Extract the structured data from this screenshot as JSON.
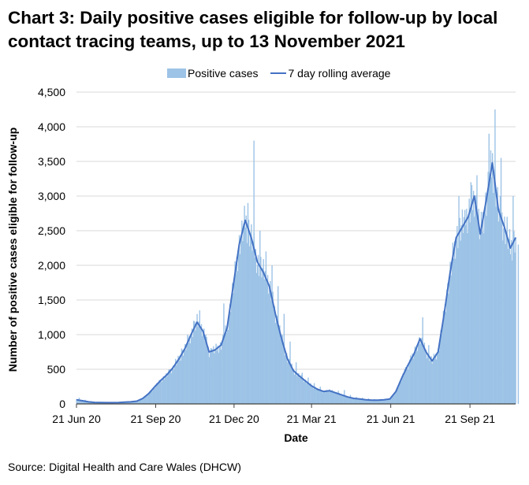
{
  "source": "Source: Digital Health and Care Wales (DHCW)",
  "chart_data": {
    "type": "bar",
    "title": "Chart 3: Daily positive cases eligible for follow-up by local contact tracing teams, up to 13 November 2021",
    "xlabel": "Date",
    "ylabel": "Number of positive cases eligible for follow-up",
    "ylim": [
      0,
      4500
    ],
    "yticks": [
      "0",
      "500",
      "1,000",
      "1,500",
      "2,000",
      "2,500",
      "3,000",
      "3,500",
      "4,000",
      "4,500"
    ],
    "ytick_values": [
      0,
      500,
      1000,
      1500,
      2000,
      2500,
      3000,
      3500,
      4000,
      4500
    ],
    "xticks": [
      "21 Jun 20",
      "21 Sep 20",
      "21 Dec 20",
      "21 Mar 21",
      "21 Jun 21",
      "21 Sep 21"
    ],
    "xtick_days": [
      0,
      92,
      183,
      273,
      365,
      457
    ],
    "x_range_days": [
      0,
      510
    ],
    "grid": "horizontal",
    "legend_position": "top",
    "legend": [
      "Positive cases",
      "7 day rolling average"
    ],
    "x_days": [
      0,
      7,
      14,
      21,
      28,
      35,
      42,
      49,
      56,
      63,
      70,
      77,
      84,
      91,
      98,
      105,
      112,
      119,
      126,
      133,
      140,
      147,
      154,
      161,
      168,
      175,
      182,
      189,
      196,
      203,
      210,
      217,
      224,
      231,
      238,
      245,
      252,
      259,
      266,
      273,
      280,
      287,
      294,
      301,
      308,
      315,
      322,
      329,
      336,
      343,
      350,
      357,
      364,
      371,
      378,
      385,
      392,
      399,
      406,
      413,
      420,
      427,
      434,
      441,
      448,
      455,
      462,
      469,
      476,
      483,
      490,
      497,
      504,
      510
    ],
    "series": [
      {
        "name": "Positive cases",
        "type": "bar",
        "color": "#9dc3e6",
        "values": [
          90,
          60,
          40,
          30,
          25,
          20,
          20,
          25,
          30,
          35,
          50,
          100,
          200,
          300,
          400,
          500,
          650,
          800,
          1000,
          1200,
          1350,
          1000,
          800,
          750,
          1450,
          850,
          1100,
          1900,
          2900,
          3800,
          2500,
          2200,
          2000,
          1700,
          1300,
          900,
          600,
          450,
          380,
          300,
          250,
          200,
          200,
          190,
          200,
          130,
          100,
          90,
          80,
          70,
          70,
          70,
          80,
          240,
          500,
          700,
          800,
          1250,
          850,
          650,
          950,
          1650,
          2100,
          3000,
          2800,
          3200,
          3300,
          2500,
          3900,
          4250,
          3550,
          2700,
          3000,
          2300
        ]
      },
      {
        "name": "7 day rolling average",
        "type": "line",
        "color": "#4472c4",
        "values": [
          60,
          45,
          30,
          22,
          20,
          18,
          18,
          20,
          25,
          30,
          40,
          80,
          150,
          250,
          340,
          420,
          520,
          650,
          800,
          1000,
          1180,
          1050,
          750,
          780,
          850,
          1100,
          1700,
          2300,
          2650,
          2400,
          2050,
          1900,
          1700,
          1300,
          950,
          650,
          480,
          400,
          330,
          260,
          210,
          180,
          190,
          160,
          130,
          100,
          80,
          70,
          60,
          55,
          55,
          60,
          70,
          180,
          380,
          560,
          720,
          940,
          750,
          620,
          750,
          1300,
          1900,
          2400,
          2550,
          2700,
          3000,
          2450,
          2950,
          3480,
          2800,
          2550,
          2250,
          2400
        ]
      }
    ]
  }
}
